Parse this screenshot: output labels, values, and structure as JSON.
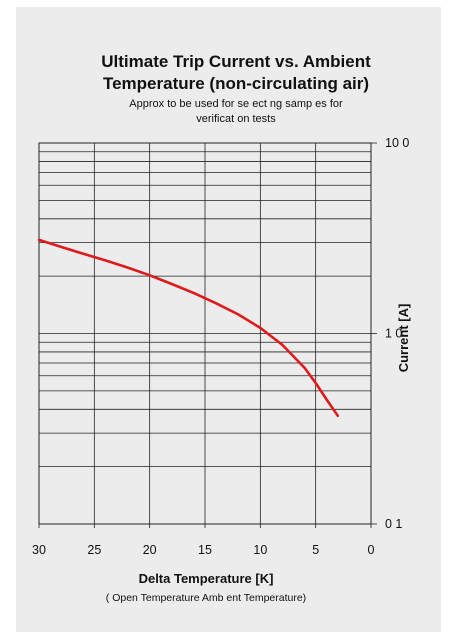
{
  "chart_data": {
    "type": "line",
    "title_line1": "Ultimate Trip Current vs. Ambient",
    "title_line2": "Temperature (non-circulating air)",
    "subtitle_line1": "Approx  to be used for se ect ng samp es for",
    "subtitle_line2": "verificat on tests",
    "xlabel": "Delta Temperature [K]",
    "xlabel_note": "(   Open Temperature   Amb ent Temperature)",
    "ylabel": "Current [A]",
    "x_ticks": [
      "30",
      "25",
      "20",
      "15",
      "10",
      "5",
      "0"
    ],
    "y_ticks": [
      "10 0",
      "1 0",
      "0 1"
    ],
    "xlim": [
      30,
      0
    ],
    "ylim": [
      0.1,
      10
    ],
    "y_scale": "log",
    "grid": true,
    "series": [
      {
        "color": "#e01a1a",
        "x": [
          30,
          28,
          26,
          24,
          22,
          20,
          18,
          16,
          14,
          12,
          10,
          8,
          6,
          5,
          4,
          3
        ],
        "y": [
          3.1,
          2.85,
          2.62,
          2.42,
          2.22,
          2.02,
          1.82,
          1.63,
          1.44,
          1.26,
          1.07,
          0.87,
          0.66,
          0.55,
          0.45,
          0.37
        ]
      }
    ]
  }
}
